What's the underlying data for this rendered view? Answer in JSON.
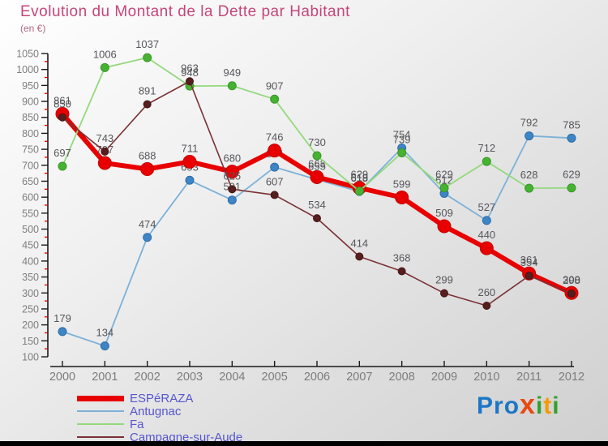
{
  "title": "Evolution du Montant de la Dette par Habitant",
  "subtitle": "(en €)",
  "title_color": "#c64679",
  "chart_data": {
    "type": "line",
    "x": [
      2000,
      2001,
      2002,
      2003,
      2004,
      2005,
      2006,
      2007,
      2008,
      2009,
      2010,
      2011,
      2012
    ],
    "series": [
      {
        "id": "esperaza",
        "name": "ESPéRAZA",
        "color": "#e80000",
        "marker_color": "#e80000",
        "marker_edge": "#c40000",
        "line_width": 6,
        "marker_radius": 8,
        "values": [
          861,
          707,
          688,
          711,
          680,
          746,
          663,
          629,
          599,
          509,
          440,
          361,
          300
        ]
      },
      {
        "id": "antugnac",
        "name": "Antugnac",
        "color": "#7db1d8",
        "marker_color": "#3d85c5",
        "marker_edge": "#2e6ca8",
        "line_width": 1.8,
        "marker_radius": 5,
        "values": [
          179,
          134,
          474,
          653,
          591,
          694,
          655,
          618,
          754,
          612,
          527,
          792,
          785
        ]
      },
      {
        "id": "fa",
        "name": "Fa",
        "color": "#93d97d",
        "marker_color": "#46b232",
        "marker_edge": "#3a9629",
        "line_width": 1.8,
        "marker_radius": 5,
        "values": [
          697,
          1006,
          1037,
          948,
          949,
          907,
          730,
          619,
          739,
          629,
          712,
          628,
          629
        ]
      },
      {
        "id": "campagne-sur-aude",
        "name": "Campagne-sur-Aude",
        "color": "#7a3134",
        "marker_color": "#571e1e",
        "marker_edge": "#451717",
        "line_width": 1.6,
        "marker_radius": 4.5,
        "values": [
          850,
          743,
          891,
          963,
          625,
          607,
          534,
          414,
          368,
          299,
          260,
          354,
          298
        ]
      }
    ],
    "ylim": [
      100,
      1050
    ],
    "yticks": [
      100,
      150,
      200,
      250,
      300,
      350,
      400,
      450,
      500,
      550,
      600,
      650,
      700,
      750,
      800,
      850,
      900,
      950,
      1000,
      1050
    ],
    "grid": false,
    "legend_position": "bottom-left",
    "axis_color": "#1a1a1a",
    "tick_label_color": "#7d7d7d",
    "minor_tick_color": "#cc0000",
    "data_label_color": "#56565c"
  },
  "legend_text_color": "#5656cf",
  "logo": {
    "letters": [
      {
        "ch": "P",
        "color": "#1d76c5"
      },
      {
        "ch": "r",
        "color": "#1d76c5"
      },
      {
        "ch": "o",
        "color": "#1d76c5"
      },
      {
        "ch": "x",
        "color": "#e8490f",
        "big": true
      },
      {
        "ch": "i",
        "color": "#33a02c"
      },
      {
        "ch": "t",
        "color": "#f59a00"
      },
      {
        "ch": "i",
        "color": "#33a02c"
      }
    ]
  }
}
